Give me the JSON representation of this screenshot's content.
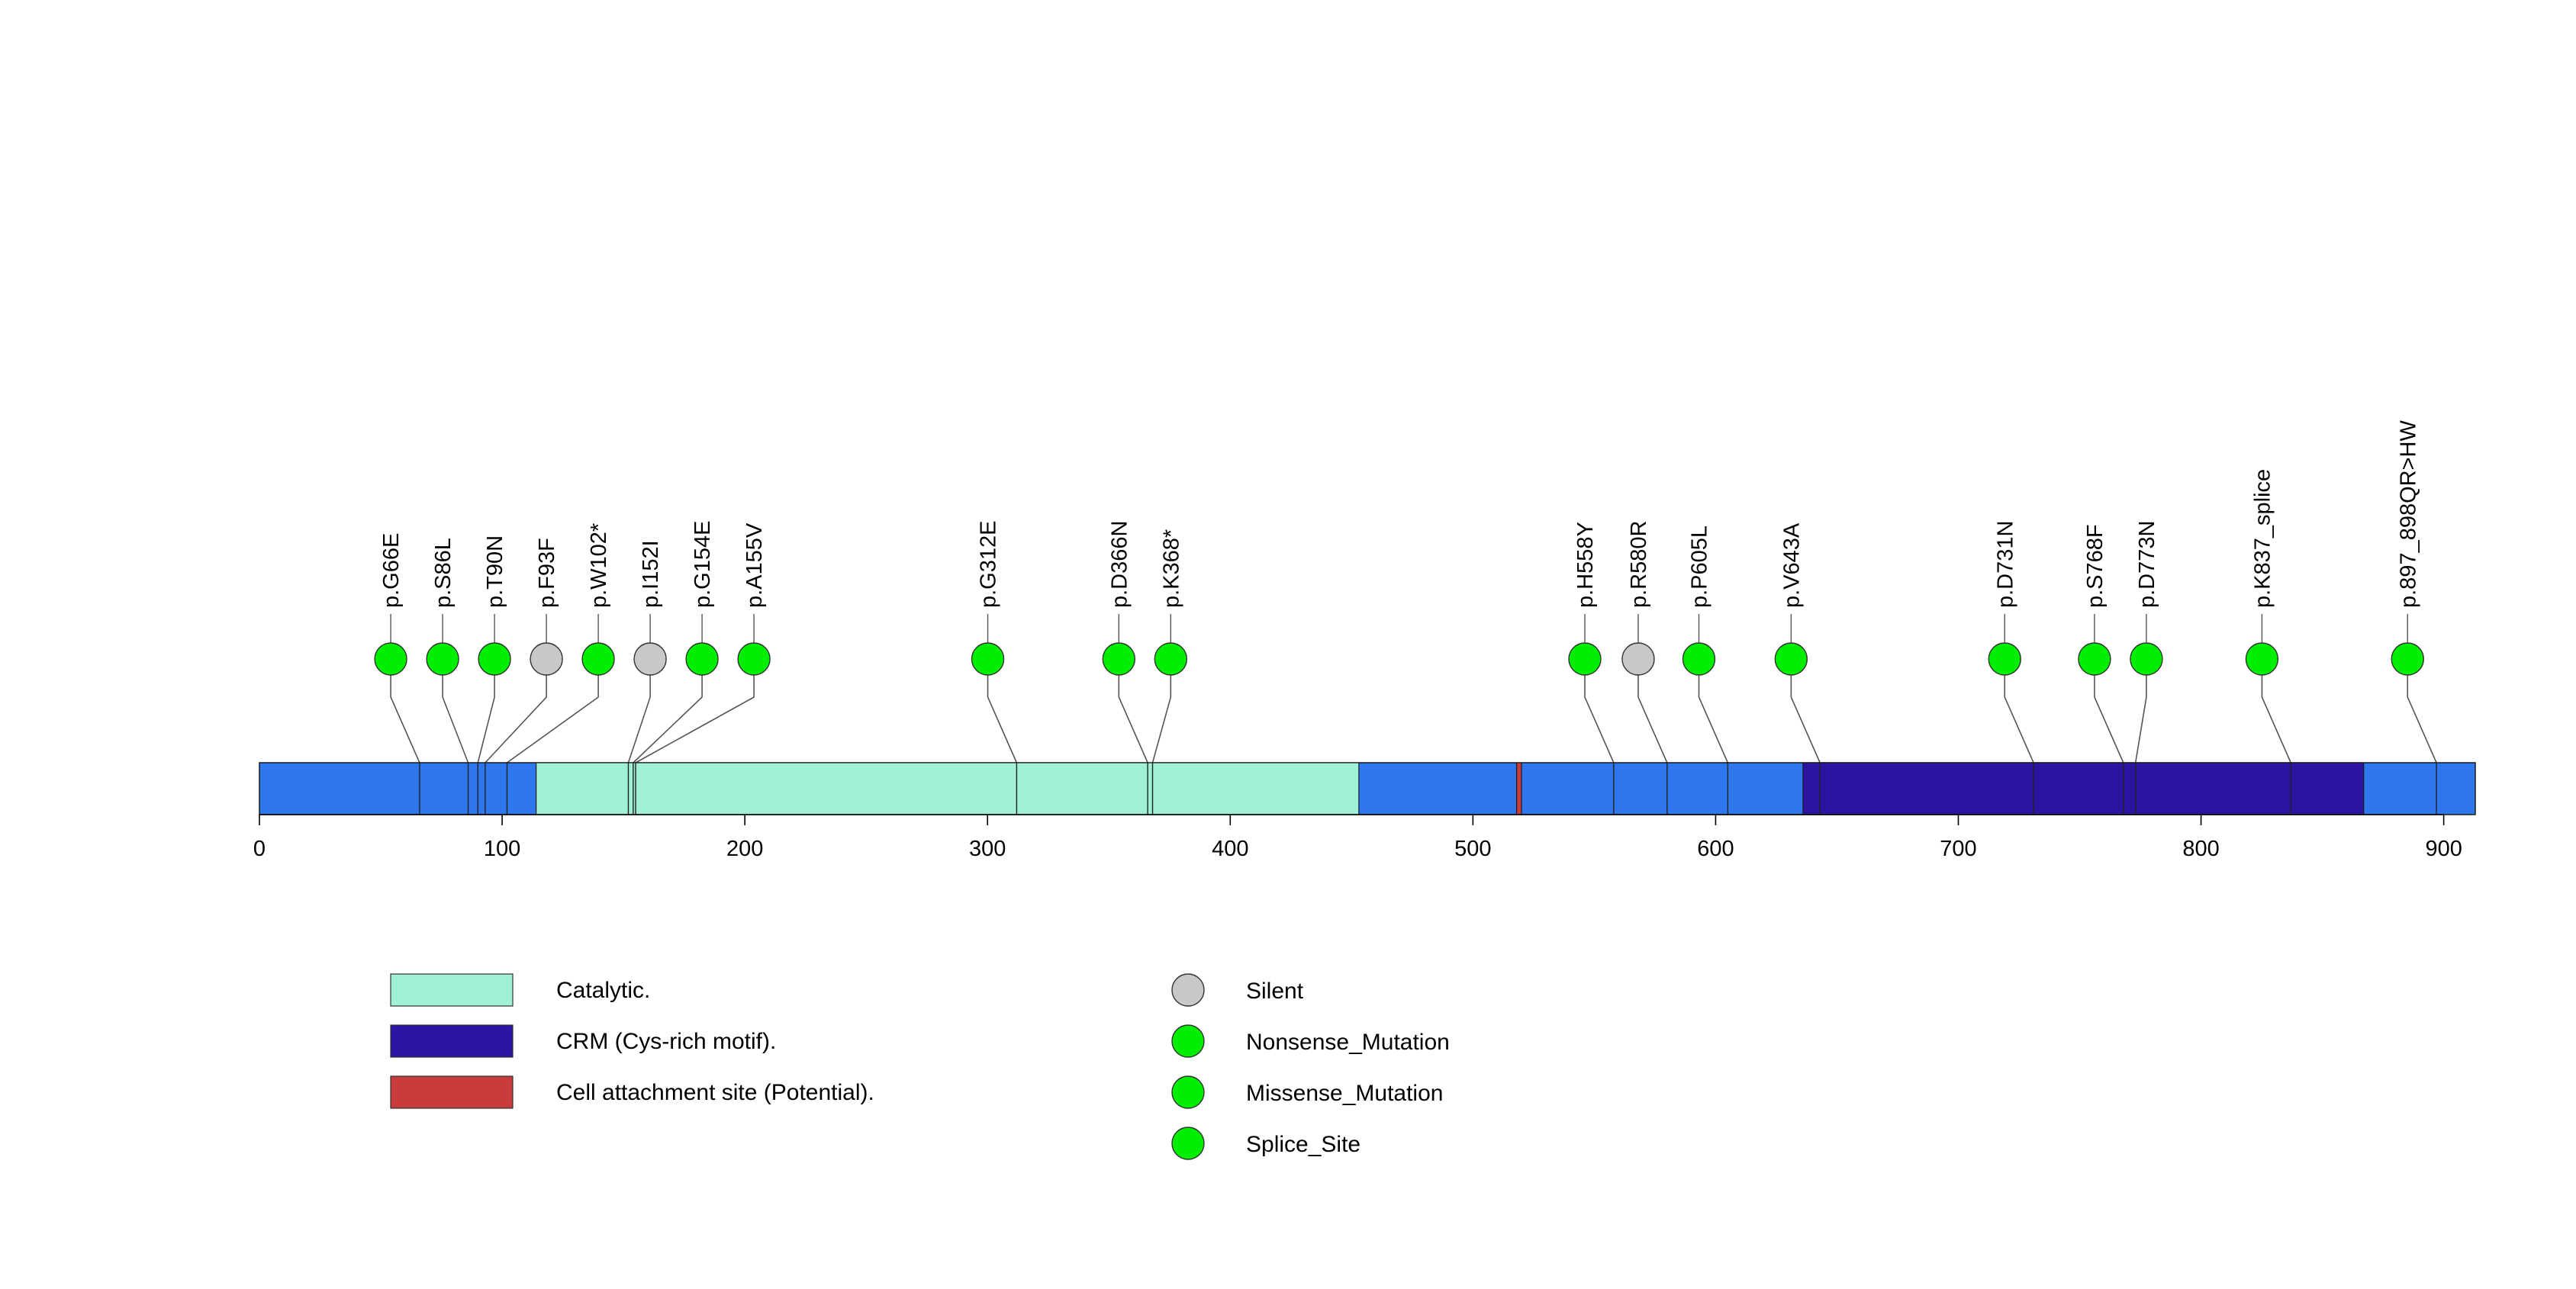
{
  "chart_data": {
    "type": "lollipop",
    "protein_length": 913,
    "axis": {
      "xlim": [
        0,
        913
      ],
      "ticks": [
        0,
        100,
        200,
        300,
        400,
        500,
        600,
        700,
        800,
        900
      ],
      "tick_labels": [
        "0",
        "100",
        "200",
        "300",
        "400",
        "500",
        "600",
        "700",
        "800",
        "900"
      ]
    },
    "backbone_color": "#2e77ee",
    "domains": [
      {
        "name": "Catalytic.",
        "start": 114,
        "end": 453,
        "color": "#9ff0d5"
      },
      {
        "name": "CRM (Cys-rich motif).",
        "start": 636,
        "end": 867,
        "color": "#2d14a0"
      },
      {
        "name": "Cell attachment site (Potential).",
        "start": 518,
        "end": 520,
        "color": "#c83c3c"
      }
    ],
    "mutations": [
      {
        "label": "p.G66E",
        "position": 66,
        "type": "Missense_Mutation"
      },
      {
        "label": "p.S86L",
        "position": 86,
        "type": "Missense_Mutation"
      },
      {
        "label": "p.T90N",
        "position": 90,
        "type": "Missense_Mutation"
      },
      {
        "label": "p.F93F",
        "position": 93,
        "type": "Silent"
      },
      {
        "label": "p.W102*",
        "position": 102,
        "type": "Nonsense_Mutation"
      },
      {
        "label": "p.I152I",
        "position": 152,
        "type": "Silent"
      },
      {
        "label": "p.G154E",
        "position": 154,
        "type": "Missense_Mutation"
      },
      {
        "label": "p.A155V",
        "position": 155,
        "type": "Missense_Mutation"
      },
      {
        "label": "p.G312E",
        "position": 312,
        "type": "Missense_Mutation"
      },
      {
        "label": "p.D366N",
        "position": 366,
        "type": "Missense_Mutation"
      },
      {
        "label": "p.K368*",
        "position": 368,
        "type": "Nonsense_Mutation"
      },
      {
        "label": "p.H558Y",
        "position": 558,
        "type": "Missense_Mutation"
      },
      {
        "label": "p.R580R",
        "position": 580,
        "type": "Silent"
      },
      {
        "label": "p.P605L",
        "position": 605,
        "type": "Missense_Mutation"
      },
      {
        "label": "p.V643A",
        "position": 643,
        "type": "Missense_Mutation"
      },
      {
        "label": "p.D731N",
        "position": 731,
        "type": "Missense_Mutation"
      },
      {
        "label": "p.S768F",
        "position": 768,
        "type": "Missense_Mutation"
      },
      {
        "label": "p.D773N",
        "position": 773,
        "type": "Missense_Mutation"
      },
      {
        "label": "p.K837_splice",
        "position": 837,
        "type": "Splice_Site"
      },
      {
        "label": "p.897_898QR>HW",
        "position": 897,
        "type": "Missense_Mutation"
      }
    ],
    "domain_legend": [
      {
        "label": "Catalytic.",
        "color": "#9ff0d5"
      },
      {
        "label": "CRM (Cys-rich motif).",
        "color": "#2d14a0"
      },
      {
        "label": "Cell attachment site (Potential).",
        "color": "#c83c3c"
      }
    ],
    "mutation_legend": [
      {
        "label": "Silent",
        "color": "#c8c8c8"
      },
      {
        "label": "Nonsense_Mutation",
        "color": "#00ee00"
      },
      {
        "label": "Missense_Mutation",
        "color": "#00ee00"
      },
      {
        "label": "Splice_Site",
        "color": "#00ee00"
      }
    ],
    "mutation_colors": {
      "Silent": "#c8c8c8",
      "Nonsense_Mutation": "#00ee00",
      "Missense_Mutation": "#00ee00",
      "Splice_Site": "#00ee00"
    }
  }
}
